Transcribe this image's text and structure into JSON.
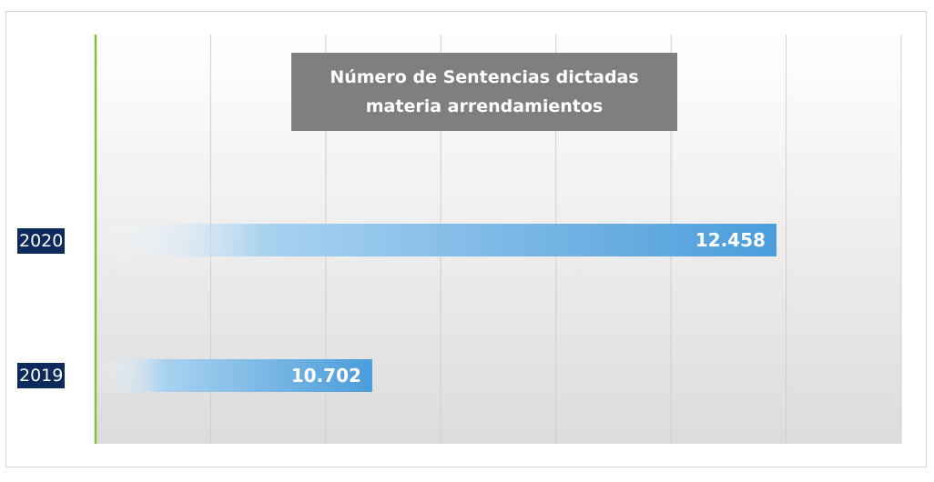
{
  "chart_data": {
    "type": "bar",
    "orientation": "horizontal",
    "title": "Número de Sentencias dictadas materia arrendamientos",
    "categories": [
      "2020",
      "2019"
    ],
    "values": [
      12458,
      10702
    ],
    "value_labels": [
      "12.458",
      "10.702"
    ],
    "xlim": [
      9500,
      13000
    ],
    "xlabel": "",
    "ylabel": "",
    "grid": true,
    "legend": "none",
    "bar_color": "#4a9ddb",
    "axis_color": "#7cc243",
    "label_bg_color": "#0d2a5c"
  }
}
